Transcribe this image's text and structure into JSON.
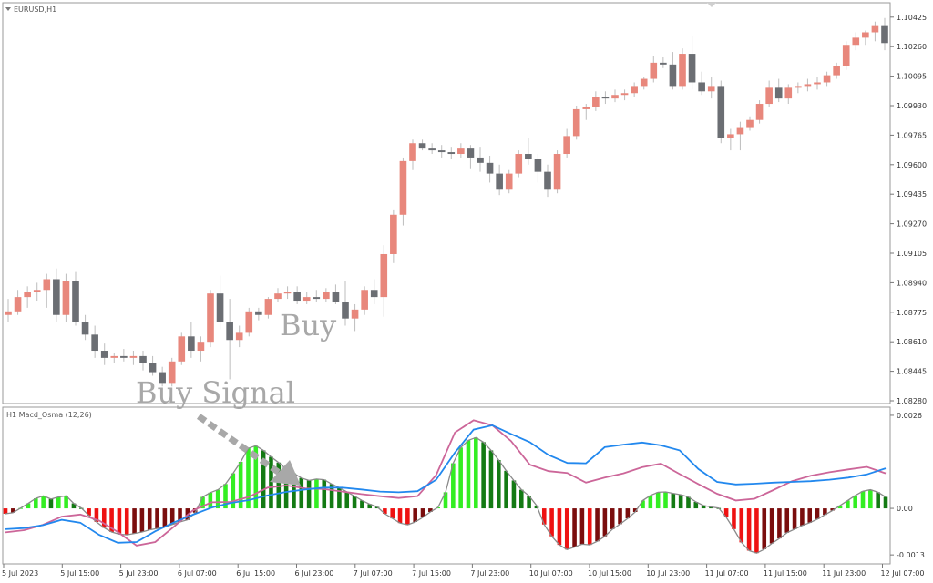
{
  "main_panel": {
    "symbol_label": "EURUSD,H1",
    "price_ticks": [
      "1.10425",
      "1.10260",
      "1.10095",
      "1.09930",
      "1.09765",
      "1.09600",
      "1.09435",
      "1.09270",
      "1.09105",
      "1.08940",
      "1.08775",
      "1.08610",
      "1.08445",
      "1.08280"
    ]
  },
  "indicator_panel": {
    "label": "H1  Macd_Osma (12,26)",
    "ticks": [
      "0.0026",
      "0.00",
      "-0.0013"
    ]
  },
  "time_axis": {
    "labels": [
      "5 Jul 2023",
      "5 Jul 15:00",
      "5 Jul 23:00",
      "6 Jul 07:00",
      "6 Jul 15:00",
      "6 Jul 23:00",
      "7 Jul 07:00",
      "7 Jul 15:00",
      "7 Jul 23:00",
      "10 Jul 07:00",
      "10 Jul 15:00",
      "10 Jul 23:00",
      "11 Jul 07:00",
      "11 Jul 15:00",
      "11 Jul 23:00",
      "12 Jul 07:00"
    ]
  },
  "annotations": {
    "buy": "Buy",
    "buy_signal": "Buy Signal"
  },
  "colors": {
    "bull": "#e8877c",
    "bear": "#6b6e73",
    "hist_pos_bright": "#33ee22",
    "hist_pos_dark": "#137a13",
    "hist_neg_bright": "#ee1111",
    "hist_neg_dark": "#7a0d0d",
    "signal_blue": "#2288ee",
    "signal_pink": "#cc6699",
    "hist_outline": "#8a8a8a"
  },
  "chart_data": [
    {
      "type": "candlestick",
      "title": "EURUSD,H1",
      "ylim": [
        1.0828,
        1.1048
      ],
      "candles": [
        [
          1.0876,
          1.0885,
          1.0872,
          1.0878
        ],
        [
          1.0878,
          1.089,
          1.0876,
          1.0886
        ],
        [
          1.0886,
          1.0892,
          1.088,
          1.0889
        ],
        [
          1.0889,
          1.0894,
          1.0884,
          1.089
        ],
        [
          1.089,
          1.0899,
          1.088,
          1.0896
        ],
        [
          1.0896,
          1.0902,
          1.0872,
          1.0876
        ],
        [
          1.0876,
          1.0899,
          1.0872,
          1.0895
        ],
        [
          1.0895,
          1.09,
          1.087,
          1.0872
        ],
        [
          1.0872,
          1.0876,
          1.0862,
          1.0865
        ],
        [
          1.0865,
          1.087,
          1.0852,
          1.0856
        ],
        [
          1.0856,
          1.086,
          1.0848,
          1.0852
        ],
        [
          1.0852,
          1.0855,
          1.0849,
          1.0853
        ],
        [
          1.0853,
          1.0857,
          1.085,
          1.0852
        ],
        [
          1.0852,
          1.0856,
          1.0848,
          1.0853
        ],
        [
          1.0853,
          1.0856,
          1.0845,
          1.0849
        ],
        [
          1.0849,
          1.0853,
          1.0842,
          1.0844
        ],
        [
          1.0844,
          1.0847,
          1.0836,
          1.0838
        ],
        [
          1.0838,
          1.0852,
          1.0836,
          1.085
        ],
        [
          1.085,
          1.0866,
          1.0848,
          1.0864
        ],
        [
          1.0864,
          1.0872,
          1.0852,
          1.0856
        ],
        [
          1.0856,
          1.0864,
          1.085,
          1.0861
        ],
        [
          1.0861,
          1.089,
          1.0858,
          1.0888
        ],
        [
          1.0888,
          1.0898,
          1.0868,
          1.0872
        ],
        [
          1.0872,
          1.0885,
          1.084,
          1.0862
        ],
        [
          1.0862,
          1.087,
          1.0858,
          1.0866
        ],
        [
          1.0866,
          1.088,
          1.0864,
          1.0878
        ],
        [
          1.0878,
          1.088,
          1.0873,
          1.0876
        ],
        [
          1.0876,
          1.0886,
          1.0874,
          1.0885
        ],
        [
          1.0885,
          1.0891,
          1.0883,
          1.0888
        ],
        [
          1.0888,
          1.0892,
          1.0885,
          1.0889
        ],
        [
          1.0889,
          1.0892,
          1.0882,
          1.0884
        ],
        [
          1.0884,
          1.0889,
          1.0882,
          1.0886
        ],
        [
          1.0886,
          1.089,
          1.0883,
          1.0885
        ],
        [
          1.0885,
          1.0891,
          1.0883,
          1.0889
        ],
        [
          1.0889,
          1.0893,
          1.0882,
          1.0883
        ],
        [
          1.0883,
          1.0895,
          1.087,
          1.0874
        ],
        [
          1.0874,
          1.0882,
          1.0867,
          1.0879
        ],
        [
          1.0879,
          1.0892,
          1.0876,
          1.089
        ],
        [
          1.089,
          1.0896,
          1.0882,
          1.0886
        ],
        [
          1.0886,
          1.0915,
          1.0875,
          1.091
        ],
        [
          1.091,
          1.0935,
          1.0905,
          1.0932
        ],
        [
          1.0932,
          1.0964,
          1.0926,
          1.0962
        ],
        [
          1.0962,
          1.0974,
          1.0957,
          1.0972
        ],
        [
          1.0972,
          1.0974,
          1.0968,
          1.0969
        ],
        [
          1.0969,
          1.0972,
          1.0966,
          1.0968
        ],
        [
          1.0968,
          1.0971,
          1.0964,
          1.0967
        ],
        [
          1.0967,
          1.097,
          1.0963,
          1.0966
        ],
        [
          1.0966,
          1.0972,
          1.0964,
          1.0969
        ],
        [
          1.0969,
          1.0971,
          1.0958,
          1.0964
        ],
        [
          1.0964,
          1.097,
          1.0956,
          1.0961
        ],
        [
          1.0961,
          1.0965,
          1.095,
          1.0955
        ],
        [
          1.0955,
          1.096,
          1.0943,
          1.0946
        ],
        [
          1.0946,
          1.0957,
          1.0944,
          1.0955
        ],
        [
          1.0955,
          1.0968,
          1.0953,
          1.0966
        ],
        [
          1.0966,
          1.0975,
          1.096,
          1.0963
        ],
        [
          1.0963,
          1.0966,
          1.095,
          1.0956
        ],
        [
          1.0956,
          1.096,
          1.0942,
          1.0946
        ],
        [
          1.0946,
          1.0968,
          1.0944,
          1.0966
        ],
        [
          1.0966,
          1.098,
          1.0964,
          1.0976
        ],
        [
          1.0976,
          1.0993,
          1.0974,
          1.0991
        ],
        [
          1.0991,
          1.0994,
          1.0985,
          1.0992
        ],
        [
          1.0992,
          1.1001,
          1.099,
          1.0998
        ],
        [
          1.0998,
          1.1001,
          1.0994,
          1.0997
        ],
        [
          1.0997,
          1.1002,
          1.0995,
          1.0999
        ],
        [
          1.0999,
          1.1002,
          1.0996,
          1.1
        ],
        [
          1.1,
          1.1006,
          1.0998,
          1.1004
        ],
        [
          1.1004,
          1.1009,
          1.1002,
          1.1008
        ],
        [
          1.1008,
          1.1021,
          1.1006,
          1.1017
        ],
        [
          1.1017,
          1.102,
          1.1014,
          1.1016
        ],
        [
          1.1016,
          1.1023,
          1.1002,
          1.1004
        ],
        [
          1.1004,
          1.1025,
          1.1002,
          1.1022
        ],
        [
          1.1022,
          1.1032,
          1.1002,
          1.1006
        ],
        [
          1.1006,
          1.1012,
          1.0999,
          1.1001
        ],
        [
          1.1001,
          1.1009,
          1.0997,
          1.1004
        ],
        [
          1.1004,
          1.1007,
          1.0972,
          1.0975
        ],
        [
          1.0975,
          1.098,
          1.0968,
          1.0977
        ],
        [
          1.0977,
          1.0984,
          1.0968,
          1.0981
        ],
        [
          1.0981,
          1.0987,
          1.0979,
          1.0985
        ],
        [
          1.0985,
          1.0996,
          1.0983,
          1.0994
        ],
        [
          1.0994,
          1.1007,
          1.0992,
          1.1003
        ],
        [
          1.1003,
          1.1008,
          1.0995,
          1.0997
        ],
        [
          1.0997,
          1.1005,
          1.0994,
          1.1003
        ],
        [
          1.1003,
          1.1006,
          1.1,
          1.1004
        ],
        [
          1.1004,
          1.1008,
          1.1001,
          1.1005
        ],
        [
          1.1005,
          1.1009,
          1.1002,
          1.1006
        ],
        [
          1.1006,
          1.1012,
          1.1004,
          1.101
        ],
        [
          1.101,
          1.1017,
          1.1008,
          1.1015
        ],
        [
          1.1015,
          1.1029,
          1.1013,
          1.1027
        ],
        [
          1.1027,
          1.1034,
          1.1024,
          1.1031
        ],
        [
          1.1031,
          1.1035,
          1.1027,
          1.1034
        ],
        [
          1.1034,
          1.104,
          1.1029,
          1.1038
        ],
        [
          1.1038,
          1.1042,
          1.1024,
          1.1028
        ]
      ]
    },
    {
      "type": "bar",
      "title": "Macd_Osma (12,26)",
      "ylim": [
        -0.0015,
        0.0027
      ],
      "values": [
        -0.00015,
        -0.00012,
        1e-05,
        0.00014,
        0.00028,
        0.00035,
        0.00026,
        0.00032,
        0.00035,
        0.00014,
        1e-05,
        -0.0002,
        -0.00038,
        -0.00054,
        -0.00066,
        -0.00072,
        -0.00074,
        -0.0007,
        -0.00066,
        -0.0006,
        -0.00056,
        -0.00052,
        -0.00045,
        -0.00038,
        -0.00032,
        -0.00012,
        0.00032,
        0.00044,
        0.00052,
        0.00068,
        0.00098,
        0.0013,
        0.00168,
        0.00175,
        0.00162,
        0.00144,
        0.00128,
        0.0011,
        0.00098,
        0.00085,
        0.00078,
        0.00082,
        0.0008,
        0.00068,
        0.00058,
        0.00046,
        0.00034,
        0.00022,
        0.00012,
        4e-05,
        -0.00015,
        -0.00028,
        -0.00041,
        -0.00046,
        -0.00038,
        -0.00025,
        -0.0001,
        3e-05,
        0.00045,
        0.00126,
        0.0017,
        0.0019,
        0.00198,
        0.00185,
        0.00162,
        0.00135,
        0.00105,
        0.00078,
        0.00052,
        0.00035,
        8e-05,
        -0.00045,
        -0.00078,
        -0.00102,
        -0.00115,
        -0.00108,
        -0.001,
        -0.00102,
        -0.00092,
        -0.00078,
        -0.00058,
        -0.00044,
        -0.00028,
        -0.0001,
        0.00022,
        0.00036,
        0.00045,
        0.00046,
        0.00042,
        0.00038,
        0.00032,
        0.00018,
        8e-05,
        4e-05,
        1e-05,
        -0.00025,
        -0.00058,
        -0.00095,
        -0.00118,
        -0.00125,
        -0.00114,
        -0.00098,
        -0.00084,
        -0.00068,
        -0.00058,
        -0.00048,
        -0.0004,
        -0.0003,
        -0.00018,
        -6e-05,
        8e-05,
        0.00022,
        0.00036,
        0.00048,
        0.00052,
        0.00045,
        0.00032
      ],
      "series": [
        {
          "color": "blue",
          "values": [
            -0.00058,
            -0.00055,
            -0.00047,
            -0.00032,
            -0.0004,
            -0.00074,
            -0.00096,
            -0.00094,
            -0.00064,
            -0.00039,
            -0.00018,
            2e-05,
            0.00015,
            0.00023,
            0.00036,
            0.00046,
            0.00053,
            0.00058,
            0.00058,
            0.00053,
            0.00047,
            0.00045,
            0.00048,
            0.0008,
            0.00156,
            0.0022,
            0.00232,
            0.00208,
            0.00185,
            0.00149,
            0.00127,
            0.00126,
            0.00171,
            0.00178,
            0.00184,
            0.00176,
            0.00162,
            0.0011,
            0.00074,
            0.00067,
            0.00069,
            0.00072,
            0.00074,
            0.00076,
            0.0008,
            0.00086,
            0.00095,
            0.00112
          ]
        },
        {
          "color": "pink",
          "values": [
            -0.00067,
            -0.00061,
            -0.00046,
            -0.00023,
            -0.00017,
            -0.00034,
            -0.00066,
            -0.00104,
            -0.00094,
            -0.00051,
            -6e-05,
            0.00017,
            0.00018,
            0.00032,
            0.00058,
            0.00064,
            0.00056,
            0.00054,
            0.00047,
            0.0004,
            0.00034,
            0.00029,
            0.00034,
            0.00093,
            0.00212,
            0.00246,
            0.00232,
            0.00188,
            0.00122,
            0.00104,
            0.00099,
            0.00072,
            0.00086,
            0.00098,
            0.00115,
            0.00125,
            0.00096,
            0.00068,
            0.00041,
            0.00022,
            0.00027,
            0.00051,
            0.00076,
            0.00091,
            0.00101,
            0.00109,
            0.00116,
            0.00098
          ]
        }
      ]
    }
  ]
}
